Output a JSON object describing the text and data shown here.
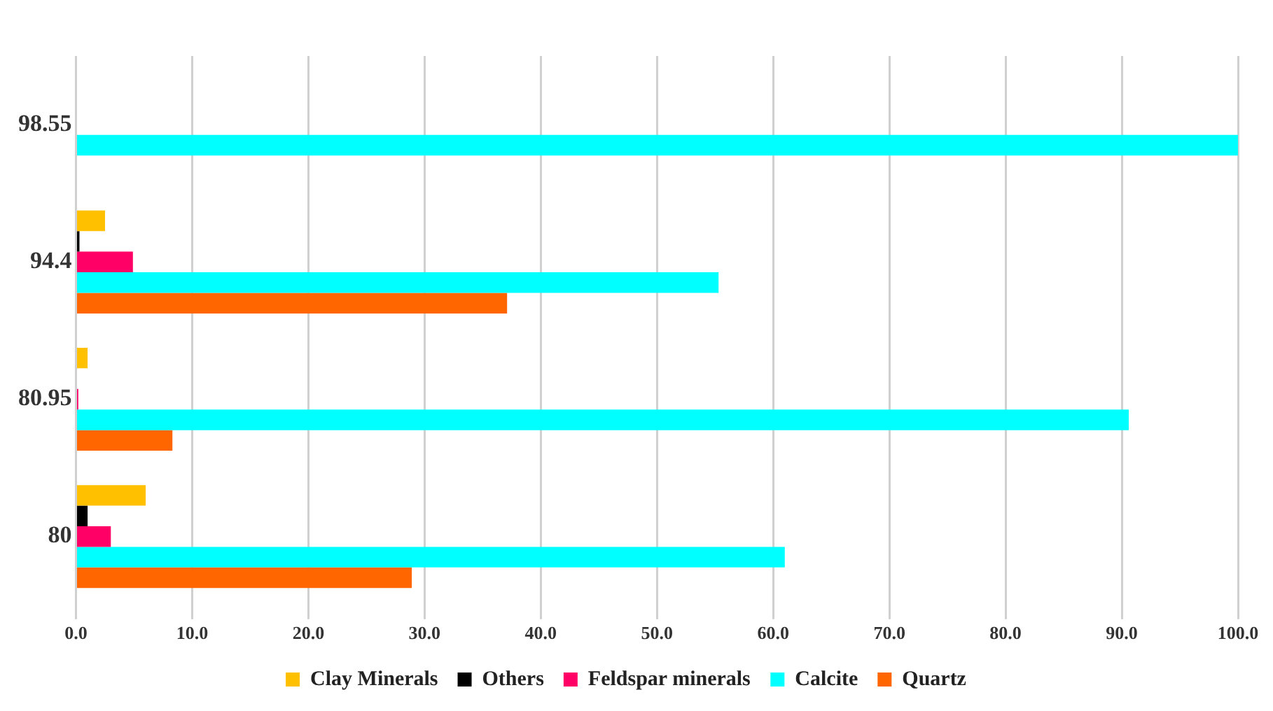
{
  "chart_data": {
    "type": "bar",
    "orientation": "horizontal",
    "categories": [
      "98.55",
      "94.4",
      "80.95",
      "80"
    ],
    "series": [
      {
        "name": "Clay Minerals",
        "color": "#ffc000",
        "values": [
          0,
          2.5,
          1.0,
          6.0
        ]
      },
      {
        "name": "Others",
        "color": "#000000",
        "values": [
          0,
          0.3,
          0,
          1.0
        ]
      },
      {
        "name": "Feldspar minerals",
        "color": "#ff0066",
        "values": [
          0,
          4.9,
          0.2,
          3.0
        ]
      },
      {
        "name": "Calcite",
        "color": "#00ffff",
        "values": [
          100,
          55.3,
          90.6,
          61.0
        ]
      },
      {
        "name": "Quartz",
        "color": "#ff6600",
        "values": [
          0,
          37.1,
          8.3,
          28.9
        ]
      }
    ],
    "xlim": [
      0,
      100
    ],
    "xticks": [
      {
        "value": 0,
        "label": "0.0"
      },
      {
        "value": 10,
        "label": "10.0"
      },
      {
        "value": 20,
        "label": "20.0"
      },
      {
        "value": 30,
        "label": "30.0"
      },
      {
        "value": 40,
        "label": "40.0"
      },
      {
        "value": 50,
        "label": "50.0"
      },
      {
        "value": 60,
        "label": "60.0"
      },
      {
        "value": 70,
        "label": "70.0"
      },
      {
        "value": 80,
        "label": "80.0"
      },
      {
        "value": 90,
        "label": "90.0"
      },
      {
        "value": 100,
        "label": "100.0"
      }
    ],
    "grid": "x",
    "legend": "bottom"
  }
}
